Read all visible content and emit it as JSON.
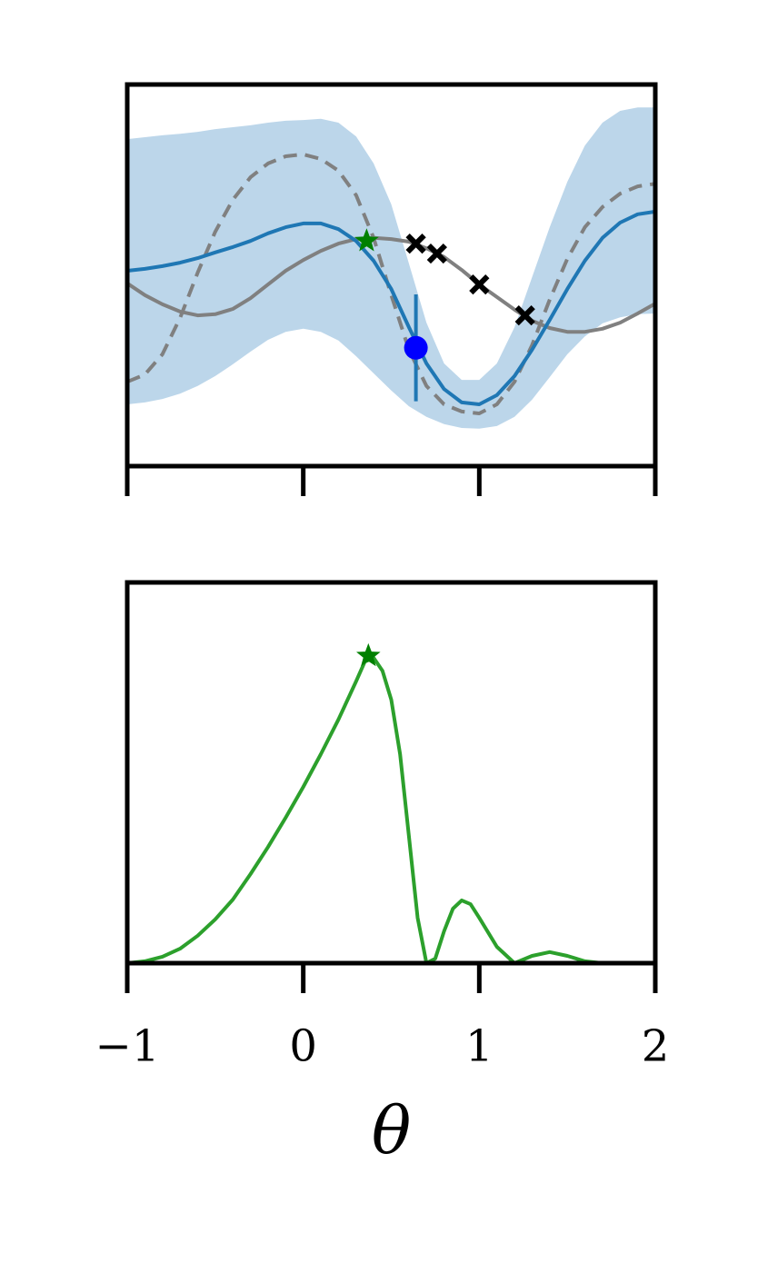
{
  "chart_data": [
    {
      "type": "line",
      "x": [
        -1,
        -0.9,
        -0.8,
        -0.7,
        -0.6,
        -0.5,
        -0.4,
        -0.3,
        -0.2,
        -0.1,
        0,
        0.1,
        0.2,
        0.3,
        0.4,
        0.5,
        0.6,
        0.7,
        0.8,
        0.9,
        1.0,
        1.1,
        1.2,
        1.3,
        1.4,
        1.5,
        1.6,
        1.7,
        1.8,
        1.9,
        2.0
      ],
      "xlim": [
        -1,
        2
      ],
      "ylim": [
        0,
        10
      ],
      "xticks": [
        -1,
        0,
        1,
        2
      ],
      "show_xtick_labels": false,
      "band": {
        "color": "#bcd6ea",
        "upper": [
          8.57,
          8.62,
          8.67,
          8.71,
          8.76,
          8.83,
          8.88,
          8.93,
          9.0,
          9.05,
          9.07,
          9.1,
          9.0,
          8.64,
          7.93,
          6.86,
          5.31,
          3.76,
          2.69,
          2.26,
          2.26,
          2.69,
          3.64,
          4.95,
          6.26,
          7.45,
          8.4,
          9.0,
          9.31,
          9.4,
          9.4
        ],
        "lower": [
          1.62,
          1.67,
          1.76,
          1.9,
          2.1,
          2.36,
          2.67,
          3.0,
          3.31,
          3.52,
          3.6,
          3.52,
          3.29,
          2.88,
          2.43,
          1.98,
          1.57,
          1.29,
          1.1,
          1.0,
          0.98,
          1.05,
          1.29,
          1.74,
          2.33,
          2.93,
          3.4,
          3.74,
          3.9,
          3.98,
          4.0
        ]
      },
      "series": [
        {
          "color": "#808080",
          "dashed": true,
          "values": [
            2.21,
            2.4,
            2.93,
            3.88,
            5.07,
            6.14,
            6.98,
            7.57,
            7.93,
            8.12,
            8.17,
            8.05,
            7.74,
            7.1,
            5.98,
            4.48,
            3.05,
            2.1,
            1.62,
            1.43,
            1.38,
            1.62,
            2.21,
            3.17,
            4.36,
            5.43,
            6.26,
            6.79,
            7.14,
            7.33,
            7.4
          ]
        },
        {
          "color": "#808080",
          "dashed": false,
          "values": [
            4.79,
            4.48,
            4.24,
            4.05,
            3.95,
            3.98,
            4.12,
            4.4,
            4.76,
            5.12,
            5.4,
            5.64,
            5.83,
            5.95,
            5.98,
            5.95,
            5.88,
            5.71,
            5.48,
            5.14,
            4.76,
            4.43,
            4.1,
            3.81,
            3.62,
            3.52,
            3.52,
            3.6,
            3.76,
            4.0,
            4.26
          ]
        },
        {
          "color": "#1f77b4",
          "dashed": false,
          "values": [
            5.12,
            5.17,
            5.24,
            5.33,
            5.45,
            5.6,
            5.74,
            5.9,
            6.1,
            6.26,
            6.36,
            6.36,
            6.21,
            5.9,
            5.38,
            4.64,
            3.64,
            2.69,
            2.02,
            1.67,
            1.62,
            1.86,
            2.36,
            3.05,
            3.83,
            4.64,
            5.38,
            5.98,
            6.38,
            6.6,
            6.67
          ]
        }
      ],
      "errorbar": {
        "x": [
          0.64
        ],
        "y": [
          3.1
        ],
        "yerr": [
          1.4
        ],
        "color": "#0000ff",
        "bar_color": "#1f77b4"
      },
      "markers": [
        {
          "marker": "x",
          "color": "#000000",
          "x": [
            0.64,
            0.76,
            1.0,
            1.26
          ],
          "y": [
            5.83,
            5.57,
            4.76,
            3.95
          ]
        },
        {
          "marker": "star",
          "color": "#008000",
          "x": [
            0.36
          ],
          "y": [
            5.9
          ]
        }
      ]
    },
    {
      "type": "line",
      "x": [
        -1,
        -0.9,
        -0.8,
        -0.7,
        -0.6,
        -0.5,
        -0.4,
        -0.3,
        -0.2,
        -0.1,
        0,
        0.1,
        0.2,
        0.3,
        0.35,
        0.4,
        0.45,
        0.5,
        0.55,
        0.6,
        0.65,
        0.7,
        0.75,
        0.8,
        0.85,
        0.9,
        0.95,
        1.0,
        1.1,
        1.2,
        1.3,
        1.4,
        1.5,
        1.6,
        1.7,
        1.8,
        1.9,
        2.0
      ],
      "xlim": [
        -1,
        2
      ],
      "ylim": [
        0,
        10
      ],
      "xticks": [
        {
          "value": -1,
          "label": "−1"
        },
        0,
        1,
        2
      ],
      "show_xtick_labels": true,
      "xlabel": "θ",
      "series": [
        {
          "color": "#2ca02c",
          "dashed": false,
          "values": [
            0,
            0.05,
            0.17,
            0.38,
            0.72,
            1.15,
            1.67,
            2.34,
            3.05,
            3.82,
            4.63,
            5.49,
            6.4,
            7.4,
            7.92,
            8.02,
            7.68,
            6.92,
            5.49,
            3.34,
            1.19,
            0,
            0.12,
            0.84,
            1.43,
            1.65,
            1.55,
            1.19,
            0.43,
            0,
            0.19,
            0.29,
            0.19,
            0.05,
            0,
            0,
            0,
            0
          ]
        }
      ],
      "markers": [
        {
          "marker": "star",
          "color": "#008000",
          "x": [
            0.37
          ],
          "y": [
            8.07
          ]
        }
      ]
    }
  ]
}
